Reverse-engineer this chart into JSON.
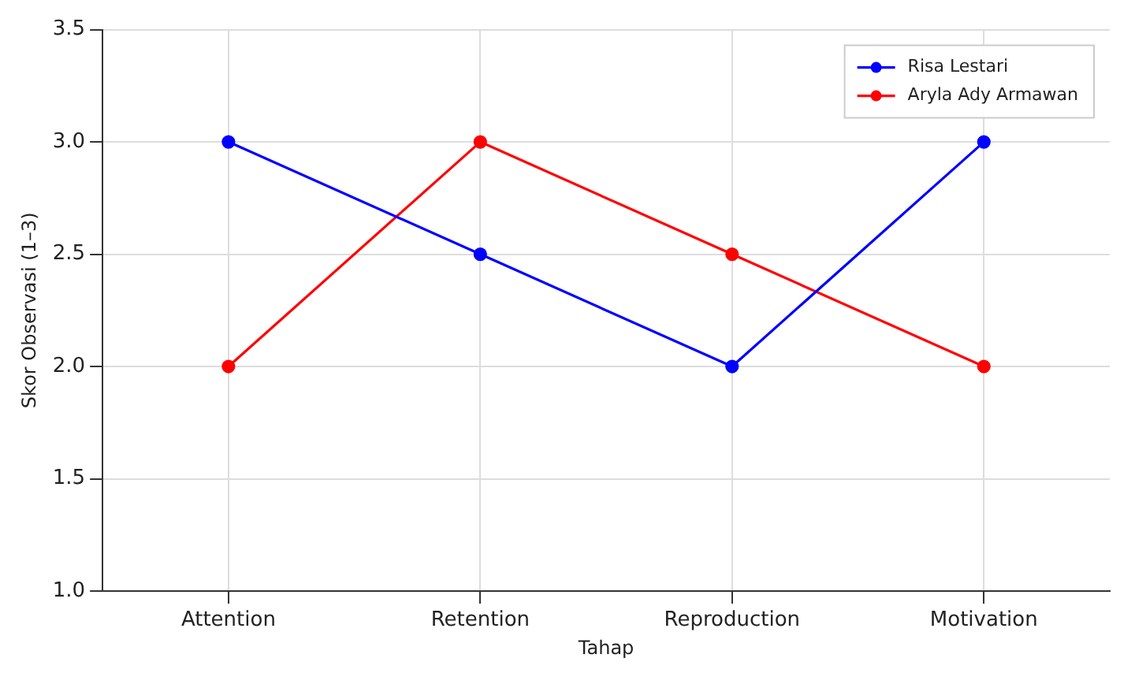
{
  "chart_data": {
    "type": "line",
    "xlabel": "Tahap",
    "ylabel": "Skor Observasi (1–3)",
    "categories": [
      "Attention",
      "Retention",
      "Reproduction",
      "Motivation"
    ],
    "series": [
      {
        "name": "Risa Lestari",
        "color": "#0000ff",
        "values": [
          3,
          2.5,
          2,
          3
        ]
      },
      {
        "name": "Aryla Ady Armawan",
        "color": "#ff0000",
        "values": [
          2,
          3,
          2.5,
          2
        ]
      }
    ],
    "ylim": [
      1,
      3.5
    ],
    "yticks": [
      {
        "value": 1,
        "label": "1.0"
      },
      {
        "value": 1.5,
        "label": "1.5"
      },
      {
        "value": 2,
        "label": "2.0"
      },
      {
        "value": 2.5,
        "label": "2.5"
      },
      {
        "value": 3,
        "label": "3.0"
      },
      {
        "value": 3.5,
        "label": "3.5"
      }
    ],
    "grid": true,
    "legend": "top right",
    "marker": "circle",
    "line_style": "solid"
  }
}
